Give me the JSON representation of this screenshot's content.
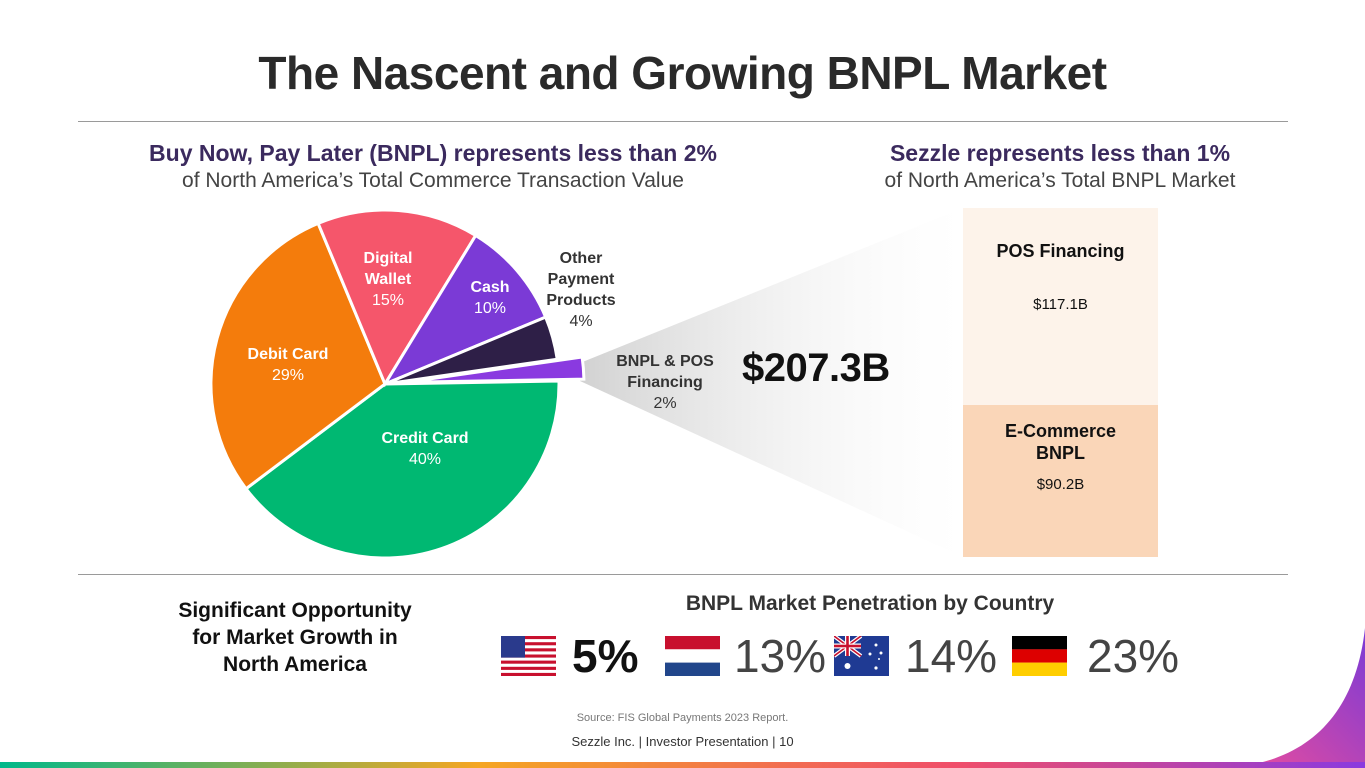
{
  "title": "The Nascent and Growing BNPL Market",
  "left_header": {
    "line1": "Buy Now, Pay Later (BNPL) represents less than 2%",
    "line2": "of North America’s Total Commerce Transaction Value"
  },
  "right_header": {
    "line1": "Sezzle represents less than 1%",
    "line2": "of North America’s Total BNPL Market"
  },
  "chart_data": [
    {
      "type": "pie",
      "title": "",
      "slices": [
        {
          "label": "Credit Card",
          "value": 40,
          "display": "40%",
          "color": "#00b872"
        },
        {
          "label": "Debit Card",
          "value": 29,
          "display": "29%",
          "color": "#f47c0c"
        },
        {
          "label": "Digital Wallet",
          "value": 15,
          "display": "15%",
          "color": "#f5566b"
        },
        {
          "label": "Cash",
          "value": 10,
          "display": "10%",
          "color": "#7b3ad6"
        },
        {
          "label": "Other Payment Products",
          "value": 4,
          "display": "4%",
          "color": "#2e1f47"
        },
        {
          "label": "BNPL & POS Financing",
          "value": 2,
          "display": "2%",
          "color": "#f08a24"
        }
      ]
    },
    {
      "type": "bar",
      "title": "",
      "total": "$207.3B",
      "stack": [
        {
          "label": "POS Financing",
          "value": 117.1,
          "display": "$117.1B",
          "color": "#fdf3ea"
        },
        {
          "label": "E-Commerce BNPL",
          "value": 90.2,
          "display": "$90.2B",
          "color": "#fad6b8"
        }
      ]
    }
  ],
  "labels": {
    "digital_wallet": {
      "line1": "Digital",
      "line2": "Wallet"
    },
    "other": {
      "line1": "Other",
      "line2": "Payment",
      "line3": "Products"
    },
    "bnpl": {
      "line1": "BNPL & POS",
      "line2": "Financing"
    },
    "ecom": {
      "line1": "E-Commerce",
      "line2": "BNPL"
    }
  },
  "opportunity": {
    "line1": "Significant Opportunity",
    "line2": "for Market Growth in",
    "line3": "North America"
  },
  "penetration": {
    "title": "BNPL Market Penetration by Country",
    "countries": [
      {
        "flag": "usa-flag-icon",
        "value": "5%"
      },
      {
        "flag": "netherlands-flag-icon",
        "value": "13%"
      },
      {
        "flag": "australia-flag-icon",
        "value": "14%"
      },
      {
        "flag": "germany-flag-icon",
        "value": "23%"
      }
    ]
  },
  "source": "Source: FIS Global Payments 2023 Report.",
  "footer": "Sezzle Inc. | Investor Presentation | 10"
}
